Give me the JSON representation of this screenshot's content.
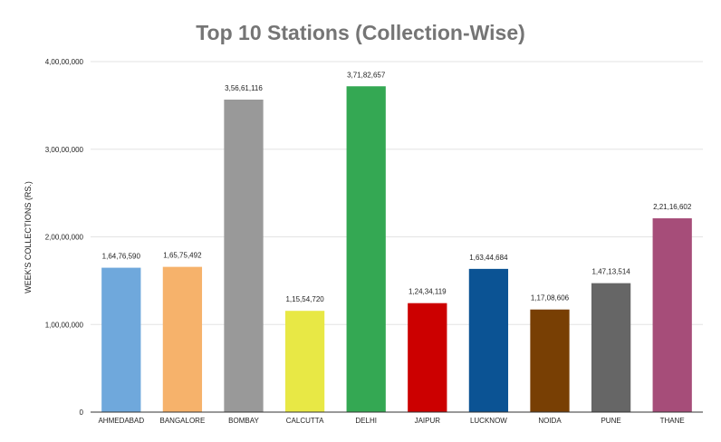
{
  "chart_data": {
    "type": "bar",
    "title": "Top 10 Stations (Collection-Wise)",
    "xlabel": "",
    "ylabel": "WEEK'S COLLECTIONS (RS.)",
    "ylim": [
      0,
      40000000
    ],
    "yticks": [
      0,
      10000000,
      20000000,
      30000000,
      40000000
    ],
    "ytick_labels": [
      "0",
      "1,00,00,000",
      "2,00,00,000",
      "3,00,00,000",
      "4,00,00,000"
    ],
    "grid": true,
    "categories": [
      "AHMEDABAD",
      "BANGALORE",
      "BOMBAY",
      "CALCUTTA",
      "DELHI",
      "JAIPUR",
      "LUCKNOW",
      "NOIDA",
      "PUNE",
      "THANE"
    ],
    "values": [
      16476590,
      16575492,
      35661116,
      11554720,
      37182657,
      12434119,
      16344684,
      11708606,
      14713514,
      22116602
    ],
    "value_labels": [
      "1,64,76,590",
      "1,65,75,492",
      "3,56,61,116",
      "1,15,54,720",
      "3,71,82,657",
      "1,24,34,119",
      "1,63,44,684",
      "1,17,08,606",
      "1,47,13,514",
      "2,21,16,602"
    ],
    "colors": [
      "#6fa8dc",
      "#f6b26b",
      "#999999",
      "#e8e845",
      "#34a853",
      "#cc0000",
      "#0b5394",
      "#783f04",
      "#666666",
      "#a64d79"
    ]
  }
}
